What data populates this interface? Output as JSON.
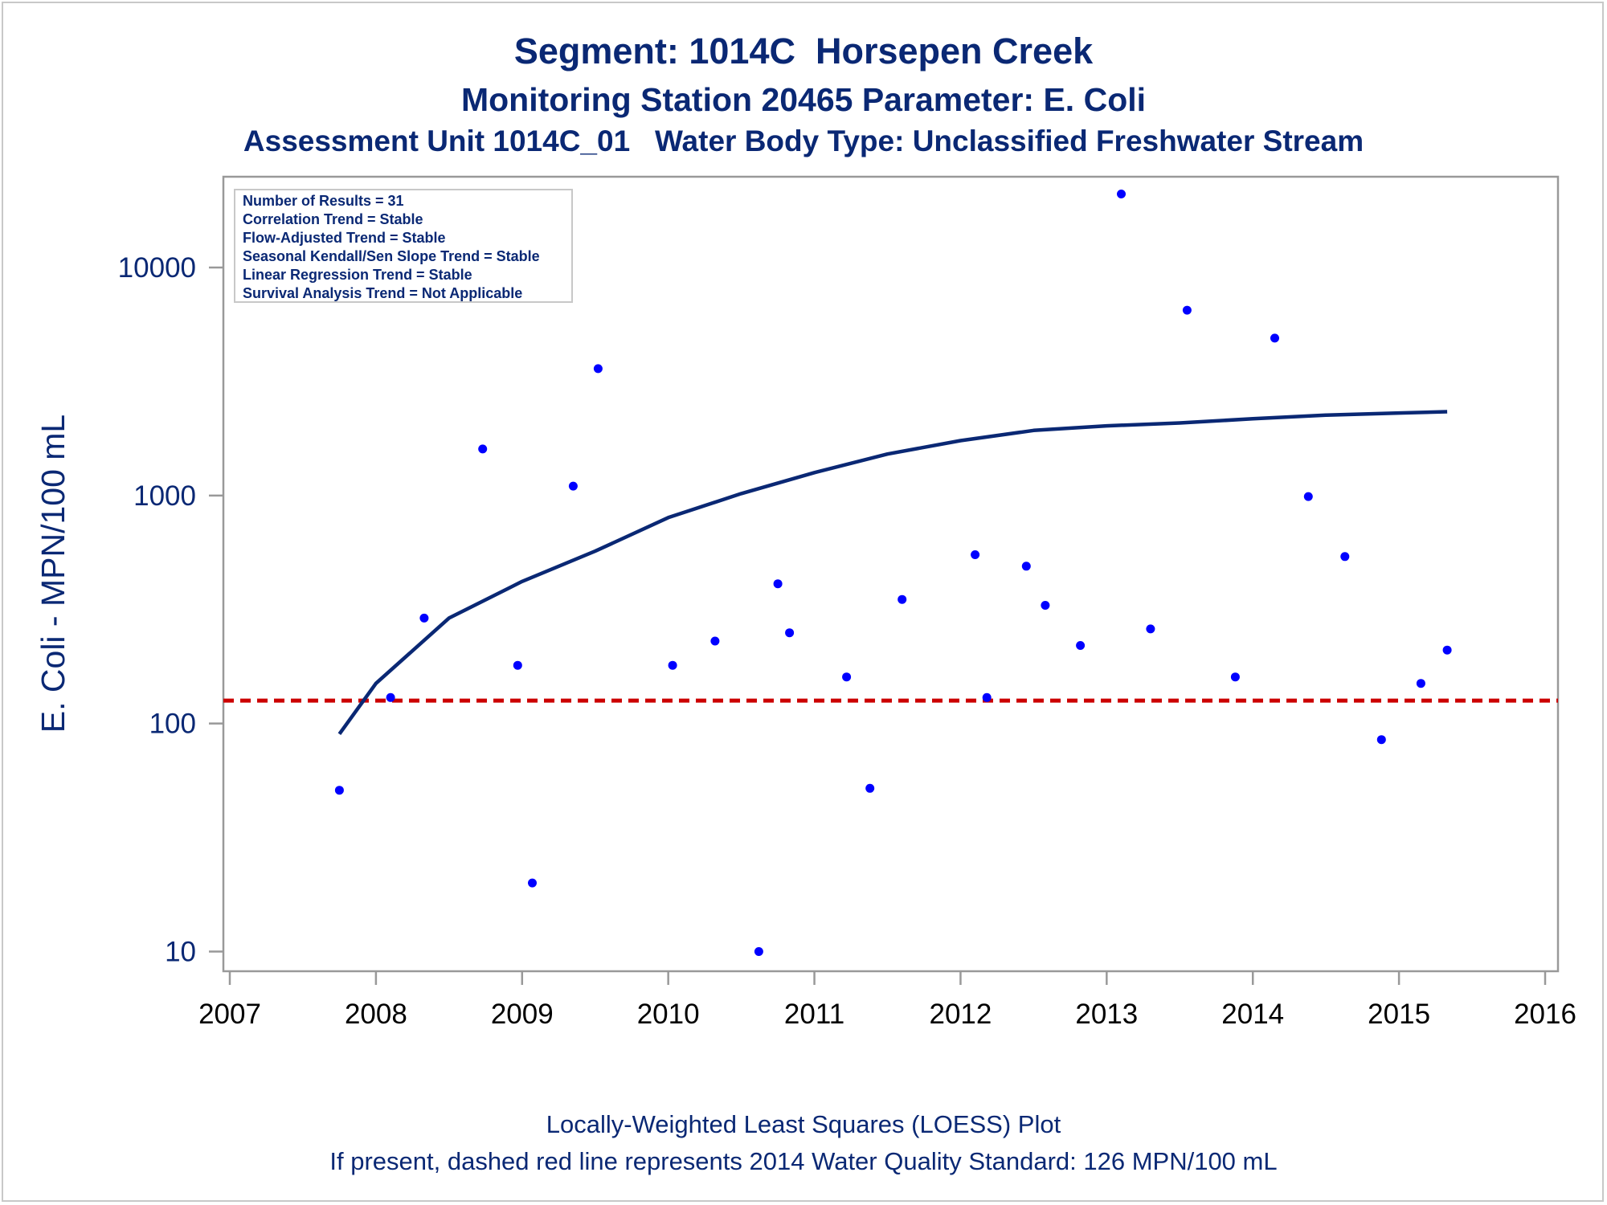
{
  "chart_data": {
    "type": "scatter",
    "title": "Segment: 1014C  Horsepen Creek",
    "subtitle": "Monitoring Station 20465 Parameter: E. Coli",
    "subtitle2": "Assessment Unit 1014C_01   Water Body Type: Unclassified Freshwater Stream",
    "xlabel": "",
    "ylabel": "E. Coli - MPN/100 mL",
    "y_scale": "log",
    "xlim": [
      2007,
      2016
    ],
    "ylim": [
      8.2,
      25000
    ],
    "x_ticks": [
      "2007",
      "2008",
      "2009",
      "2010",
      "2011",
      "2012",
      "2013",
      "2014",
      "2015",
      "2016"
    ],
    "y_ticks": [
      "10",
      "100",
      "1000",
      "10000"
    ],
    "grid": false,
    "points": [
      {
        "x": 2007.75,
        "y": 51
      },
      {
        "x": 2008.1,
        "y": 130
      },
      {
        "x": 2008.33,
        "y": 290
      },
      {
        "x": 2008.73,
        "y": 1600
      },
      {
        "x": 2008.97,
        "y": 180
      },
      {
        "x": 2009.07,
        "y": 20
      },
      {
        "x": 2009.35,
        "y": 1100
      },
      {
        "x": 2009.52,
        "y": 3600
      },
      {
        "x": 2010.03,
        "y": 180
      },
      {
        "x": 2010.32,
        "y": 230
      },
      {
        "x": 2010.62,
        "y": 10
      },
      {
        "x": 2010.75,
        "y": 410
      },
      {
        "x": 2010.83,
        "y": 250
      },
      {
        "x": 2011.22,
        "y": 160
      },
      {
        "x": 2011.38,
        "y": 52
      },
      {
        "x": 2011.6,
        "y": 350
      },
      {
        "x": 2012.1,
        "y": 550
      },
      {
        "x": 2012.18,
        "y": 130
      },
      {
        "x": 2012.45,
        "y": 490
      },
      {
        "x": 2012.58,
        "y": 330
      },
      {
        "x": 2012.82,
        "y": 220
      },
      {
        "x": 2013.1,
        "y": 21000
      },
      {
        "x": 2013.3,
        "y": 260
      },
      {
        "x": 2013.55,
        "y": 6500
      },
      {
        "x": 2013.88,
        "y": 160
      },
      {
        "x": 2014.15,
        "y": 4900
      },
      {
        "x": 2014.38,
        "y": 990
      },
      {
        "x": 2014.63,
        "y": 540
      },
      {
        "x": 2014.88,
        "y": 85
      },
      {
        "x": 2015.15,
        "y": 150
      },
      {
        "x": 2015.33,
        "y": 210
      }
    ],
    "loess_curve": [
      {
        "x": 2007.75,
        "y": 90
      },
      {
        "x": 2008.0,
        "y": 150
      },
      {
        "x": 2008.5,
        "y": 290
      },
      {
        "x": 2009.0,
        "y": 420
      },
      {
        "x": 2009.5,
        "y": 570
      },
      {
        "x": 2010.0,
        "y": 800
      },
      {
        "x": 2010.5,
        "y": 1020
      },
      {
        "x": 2011.0,
        "y": 1260
      },
      {
        "x": 2011.5,
        "y": 1520
      },
      {
        "x": 2012.0,
        "y": 1740
      },
      {
        "x": 2012.5,
        "y": 1930
      },
      {
        "x": 2013.0,
        "y": 2020
      },
      {
        "x": 2013.5,
        "y": 2080
      },
      {
        "x": 2014.0,
        "y": 2170
      },
      {
        "x": 2014.5,
        "y": 2250
      },
      {
        "x": 2015.0,
        "y": 2300
      },
      {
        "x": 2015.33,
        "y": 2330
      }
    ],
    "standard_line": {
      "y": 126
    },
    "stats_box": [
      "Number of Results = 31",
      "Correlation Trend = Stable",
      "Flow-Adjusted Trend = Stable",
      "Seasonal Kendall/Sen Slope Trend = Stable",
      "Linear Regression Trend = Stable",
      "Survival Analysis Trend = Not Applicable"
    ],
    "footnotes": [
      "Locally-Weighted Least Squares (LOESS) Plot",
      "If present, dashed red line represents 2014 Water Quality Standard: 126 MPN/100 mL"
    ],
    "colors": {
      "text": "#0a2874",
      "points": "#0000ff",
      "loess": "#0a2874",
      "standard": "#cc0000",
      "axis": "#999999"
    }
  }
}
